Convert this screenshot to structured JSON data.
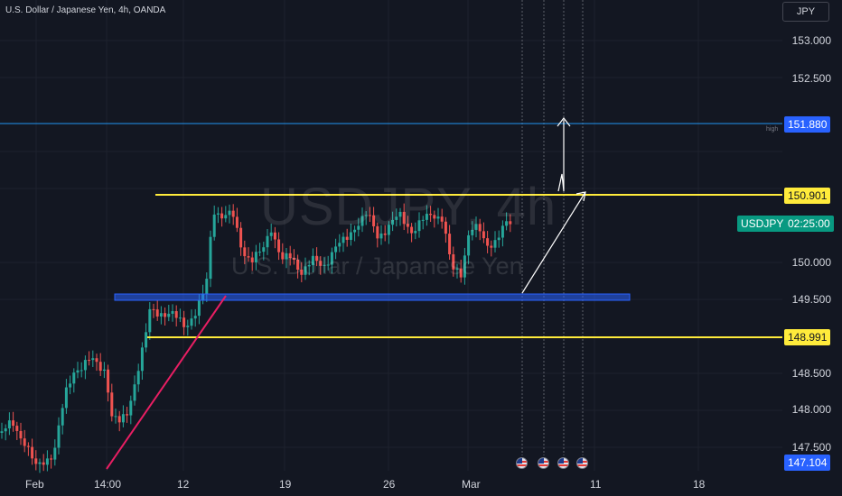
{
  "header": {
    "title": "U.S. Dollar / Japanese Yen, 4h, OANDA",
    "currency": "JPY"
  },
  "watermark": {
    "symbol": "USDJPY, 4h",
    "name": "U.S. Dollar / Japanese Yen"
  },
  "price_axis": {
    "ticks": [
      "153.000",
      "152.500",
      "150.000",
      "149.500",
      "148.500",
      "148.000",
      "147.500"
    ]
  },
  "time_axis": {
    "labels": [
      "Feb",
      "14:00",
      "12",
      "19",
      "26",
      "Mar",
      "11",
      "18"
    ]
  },
  "price_tags": {
    "high_line": "151.880",
    "high_note": "high",
    "resistance": "150.901",
    "symbol_label": "USDJPY",
    "countdown": "02:25:00",
    "support": "148.991",
    "low_value": "147.104"
  },
  "colors": {
    "background": "#131722",
    "up_candle": "#26a69a",
    "down_candle": "#ef5350",
    "level_line": "#ffeb3b",
    "zone": "#2962ff",
    "trendline": "#e91e63",
    "high_line": "#2196f3"
  },
  "events": {
    "flags": [
      "us-flag-icon",
      "us-flag-icon",
      "us-flag-icon",
      "us-flag-icon"
    ]
  }
}
